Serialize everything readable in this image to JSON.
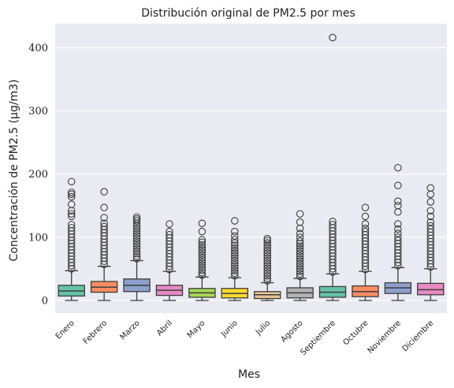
{
  "chart_data": {
    "type": "box",
    "title": "Distribución original de PM2.5 por mes",
    "xlabel": "Mes",
    "ylabel": "Concentración de PM2.5 (μg/m3)",
    "categories": [
      "Enero",
      "Febrero",
      "Marzo",
      "Abril",
      "Mayo",
      "Junio",
      "Julio",
      "Agosto",
      "Septiembre",
      "Octubre",
      "Noviembre",
      "Diciembre"
    ],
    "ylim": [
      -20,
      438
    ],
    "yticks": [
      0,
      100,
      200,
      300,
      400
    ],
    "grid": true,
    "background": "#eaeaf2",
    "boxes": [
      {
        "label": "Enero",
        "color": "#66c2a5",
        "whisker_low": 0,
        "q1": 7,
        "median": 15,
        "q3": 24,
        "whisker_high": 47,
        "outliers": [
          50,
          55,
          60,
          65,
          70,
          75,
          80,
          85,
          90,
          95,
          100,
          105,
          110,
          115,
          120,
          133,
          137,
          142,
          152,
          164,
          168,
          171,
          188
        ]
      },
      {
        "label": "Febrero",
        "color": "#fc8d62",
        "whisker_low": 0,
        "q1": 13,
        "median": 21,
        "q3": 30,
        "whisker_high": 54,
        "outliers": [
          57,
          62,
          67,
          72,
          77,
          82,
          87,
          92,
          97,
          102,
          107,
          112,
          117,
          122,
          131,
          147,
          172
        ]
      },
      {
        "label": "Marzo",
        "color": "#8da0cb",
        "whisker_low": 0,
        "q1": 14,
        "median": 24,
        "q3": 34,
        "whisker_high": 63,
        "outliers": [
          66,
          70,
          74,
          78,
          82,
          86,
          90,
          94,
          98,
          102,
          106,
          110,
          114,
          118,
          122,
          126,
          129,
          132
        ]
      },
      {
        "label": "Abril",
        "color": "#e78ac3",
        "whisker_low": 0,
        "q1": 8,
        "median": 16,
        "q3": 24,
        "whisker_high": 46,
        "outliers": [
          49,
          54,
          59,
          64,
          69,
          74,
          79,
          84,
          89,
          94,
          99,
          104,
          109,
          121
        ]
      },
      {
        "label": "Mayo",
        "color": "#a6d854",
        "whisker_low": 0,
        "q1": 5,
        "median": 12,
        "q3": 19,
        "whisker_high": 37,
        "outliers": [
          40,
          44,
          48,
          52,
          56,
          60,
          64,
          68,
          72,
          76,
          80,
          84,
          88,
          92,
          96,
          109,
          122
        ]
      },
      {
        "label": "Junio",
        "color": "#ffd92f",
        "whisker_low": 0,
        "q1": 4,
        "median": 11,
        "q3": 19,
        "whisker_high": 36,
        "outliers": [
          39,
          43,
          47,
          51,
          55,
          59,
          63,
          67,
          71,
          75,
          79,
          83,
          87,
          91,
          96,
          102,
          109,
          126
        ]
      },
      {
        "label": "Julio",
        "color": "#e5c494",
        "whisker_low": 0,
        "q1": 3,
        "median": 9,
        "q3": 14,
        "whisker_high": 28,
        "outliers": [
          31,
          35,
          39,
          43,
          47,
          51,
          55,
          59,
          63,
          67,
          71,
          75,
          79,
          83,
          87,
          91,
          95,
          98
        ]
      },
      {
        "label": "Agosto",
        "color": "#b3b3b3",
        "whisker_low": 0,
        "q1": 4,
        "median": 12,
        "q3": 20,
        "whisker_high": 35,
        "outliers": [
          38,
          42,
          46,
          50,
          54,
          58,
          62,
          66,
          70,
          74,
          78,
          82,
          86,
          90,
          94,
          100,
          106,
          114,
          124,
          137
        ]
      },
      {
        "label": "Septiembre",
        "color": "#66c2a5",
        "whisker_low": 0,
        "q1": 5,
        "median": 13,
        "q3": 22,
        "whisker_high": 42,
        "outliers": [
          45,
          50,
          55,
          60,
          65,
          70,
          75,
          80,
          85,
          90,
          95,
          100,
          105,
          110,
          115,
          120,
          125,
          416
        ]
      },
      {
        "label": "Octubre",
        "color": "#fc8d62",
        "whisker_low": 0,
        "q1": 6,
        "median": 14,
        "q3": 23,
        "whisker_high": 46,
        "outliers": [
          49,
          54,
          59,
          64,
          69,
          74,
          79,
          84,
          89,
          94,
          99,
          104,
          109,
          114,
          121,
          133,
          147
        ]
      },
      {
        "label": "Noviembre",
        "color": "#8da0cb",
        "whisker_low": 0,
        "q1": 11,
        "median": 20,
        "q3": 28,
        "whisker_high": 52,
        "outliers": [
          55,
          60,
          65,
          70,
          75,
          80,
          85,
          90,
          95,
          100,
          106,
          113,
          121,
          140,
          150,
          157,
          182,
          210
        ]
      },
      {
        "label": "Diciembre",
        "color": "#e78ac3",
        "whisker_low": 0,
        "q1": 9,
        "median": 17,
        "q3": 27,
        "whisker_high": 50,
        "outliers": [
          53,
          58,
          63,
          68,
          73,
          78,
          83,
          88,
          93,
          98,
          103,
          108,
          113,
          118,
          124,
          133,
          142,
          156,
          168,
          178
        ]
      }
    ]
  }
}
